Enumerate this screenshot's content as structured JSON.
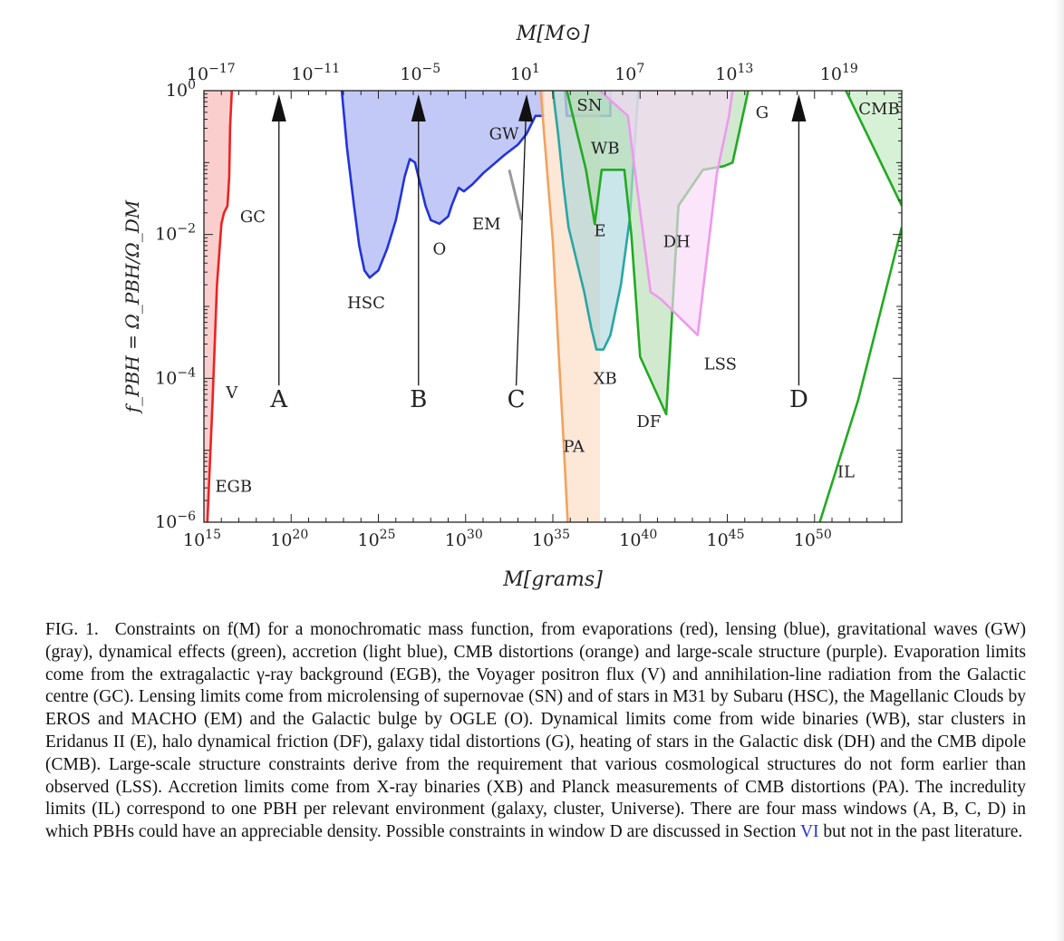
{
  "chart_data": {
    "type": "area",
    "title": "",
    "xlabel": "M[grams]",
    "x2label": "M[M⊙]",
    "ylabel": "f_PBH = Ω_PBH/Ω_DM",
    "xscale": "log",
    "yscale": "log",
    "xlim_log10": [
      15,
      55
    ],
    "ylim_log10": [
      -6,
      0
    ],
    "x_ticks": [
      {
        "log": 15,
        "base": "10",
        "exp": "15"
      },
      {
        "log": 20,
        "base": "10",
        "exp": "20"
      },
      {
        "log": 25,
        "base": "10",
        "exp": "25"
      },
      {
        "log": 30,
        "base": "10",
        "exp": "30"
      },
      {
        "log": 35,
        "base": "10",
        "exp": "35"
      },
      {
        "log": 40,
        "base": "10",
        "exp": "40"
      },
      {
        "log": 45,
        "base": "10",
        "exp": "45"
      },
      {
        "log": 50,
        "base": "10",
        "exp": "50"
      }
    ],
    "x2_ticks": [
      {
        "log": 15.3,
        "base": "10",
        "exp": "−17"
      },
      {
        "log": 21.3,
        "base": "10",
        "exp": "−11"
      },
      {
        "log": 27.3,
        "base": "10",
        "exp": "−5"
      },
      {
        "log": 33.3,
        "base": "10",
        "exp": "1"
      },
      {
        "log": 39.3,
        "base": "10",
        "exp": "7"
      },
      {
        "log": 45.3,
        "base": "10",
        "exp": "13"
      },
      {
        "log": 51.3,
        "base": "10",
        "exp": "19"
      }
    ],
    "y_ticks": [
      {
        "log": 0,
        "base": "10",
        "exp": "0"
      },
      {
        "log": -2,
        "base": "10",
        "exp": "−2"
      },
      {
        "log": -4,
        "base": "10",
        "exp": "−4"
      },
      {
        "log": -6,
        "base": "10",
        "exp": "−6"
      }
    ],
    "regions": [
      {
        "name": "Evaporation",
        "color": "#ee2222",
        "fill": "#fbc9c9",
        "fill_opacity": 0.9,
        "boundary": [
          [
            15.2,
            -6
          ],
          [
            15.5,
            -4.3
          ],
          [
            15.75,
            -2.7
          ],
          [
            16.0,
            -1.85
          ],
          [
            16.15,
            -1.7
          ],
          [
            16.35,
            -1.6
          ],
          [
            16.45,
            -1.2
          ],
          [
            16.5,
            -0.5
          ],
          [
            16.6,
            0
          ]
        ],
        "closure": [
          [
            15.0,
            0
          ],
          [
            15.0,
            -6
          ]
        ]
      },
      {
        "name": "Lensing",
        "color": "#2233dd",
        "fill": "#b8bff4",
        "fill_opacity": 0.85,
        "boundary": [
          [
            22.9,
            0
          ],
          [
            23.2,
            -0.8
          ],
          [
            23.6,
            -1.6
          ],
          [
            23.9,
            -2.15
          ],
          [
            24.2,
            -2.5
          ],
          [
            24.5,
            -2.6
          ],
          [
            25.0,
            -2.5
          ],
          [
            25.5,
            -2.2
          ],
          [
            26.0,
            -1.8
          ],
          [
            26.3,
            -1.45
          ],
          [
            26.5,
            -1.2
          ],
          [
            26.8,
            -0.95
          ],
          [
            27.1,
            -1.0
          ],
          [
            27.4,
            -1.3
          ],
          [
            27.7,
            -1.6
          ],
          [
            28.0,
            -1.8
          ],
          [
            28.5,
            -1.85
          ],
          [
            29.0,
            -1.75
          ],
          [
            29.2,
            -1.6
          ],
          [
            29.6,
            -1.35
          ],
          [
            29.9,
            -1.4
          ],
          [
            30.4,
            -1.3
          ],
          [
            31.0,
            -1.15
          ],
          [
            32.2,
            -0.9
          ],
          [
            33.0,
            -0.75
          ],
          [
            33.5,
            -0.6
          ],
          [
            34.0,
            -0.35
          ],
          [
            34.5,
            -0.35
          ]
        ],
        "closure": [
          [
            34.5,
            0
          ]
        ]
      },
      {
        "name": "SN",
        "color": "#2233dd",
        "fill": "#a6b8e6",
        "fill_opacity": 0.5,
        "boundary": [
          [
            35.7,
            0
          ],
          [
            35.8,
            -0.35
          ],
          [
            38.3,
            -0.35
          ],
          [
            38.3,
            0
          ]
        ],
        "closure": []
      },
      {
        "name": "PA",
        "color": "#f2a25e",
        "fill": "#fbd6b8",
        "fill_opacity": 0.55,
        "boundary": [
          [
            34.3,
            0
          ],
          [
            34.7,
            -1.2
          ],
          [
            35.0,
            -2.1
          ],
          [
            35.3,
            -3.5
          ],
          [
            35.6,
            -4.8
          ],
          [
            35.85,
            -6
          ]
        ],
        "closure": [
          [
            37.7,
            -6
          ],
          [
            37.7,
            0
          ]
        ]
      },
      {
        "name": "XB",
        "color": "#2aa5a5",
        "fill": "#9fd2d8",
        "fill_opacity": 0.55,
        "boundary": [
          [
            35.0,
            0
          ],
          [
            35.3,
            -0.6
          ],
          [
            35.6,
            -1.3
          ],
          [
            35.9,
            -1.9
          ],
          [
            36.3,
            -2.3
          ],
          [
            36.8,
            -2.8
          ],
          [
            37.2,
            -3.3
          ],
          [
            37.5,
            -3.6
          ],
          [
            37.9,
            -3.6
          ],
          [
            38.3,
            -3.4
          ],
          [
            38.9,
            -2.7
          ],
          [
            39.4,
            -1.8
          ],
          [
            39.9,
            0
          ]
        ],
        "closure": []
      },
      {
        "name": "Dynamical",
        "color": "#22aa22",
        "fill": "#b9dfb5",
        "fill_opacity": 0.65,
        "boundary": [
          [
            35.8,
            0
          ],
          [
            36.3,
            -0.5
          ],
          [
            36.9,
            -1.1
          ],
          [
            37.4,
            -1.85
          ],
          [
            37.8,
            -1.1
          ],
          [
            39.1,
            -1.1
          ],
          [
            39.5,
            -2.0
          ],
          [
            40.0,
            -3.7
          ],
          [
            41.5,
            -4.5
          ],
          [
            42.2,
            -1.6
          ],
          [
            43.6,
            -1.1
          ],
          [
            44.8,
            -1.05
          ],
          [
            45.3,
            -1.0
          ],
          [
            46.2,
            0
          ]
        ],
        "closure": []
      },
      {
        "name": "LSS",
        "color": "#ee99ee",
        "fill": "#f8d7f8",
        "fill_opacity": 0.65,
        "boundary": [
          [
            37.7,
            0
          ],
          [
            39.3,
            -0.35
          ],
          [
            40.6,
            -2.8
          ],
          [
            41.2,
            -2.9
          ],
          [
            43.3,
            -3.4
          ],
          [
            44.4,
            -1.15
          ],
          [
            45.1,
            -0.35
          ],
          [
            45.3,
            0
          ]
        ],
        "closure": []
      },
      {
        "name": "CMB",
        "color": "#22aa22",
        "fill": "#c6ebc4",
        "fill_opacity": 0.7,
        "boundary": [
          [
            51.8,
            0
          ],
          [
            52.5,
            -0.35
          ],
          [
            54.8,
            -1.5
          ],
          [
            55,
            -1.6
          ]
        ],
        "closure": [
          [
            55,
            0
          ]
        ]
      },
      {
        "name": "IL",
        "color": "#22aa22",
        "fill": "none",
        "fill_opacity": 0,
        "boundary": [
          [
            50.3,
            -6
          ],
          [
            52.5,
            -4.3
          ],
          [
            55,
            -1.9
          ]
        ],
        "closure": []
      },
      {
        "name": "GW",
        "color": "#999999",
        "fill": "none",
        "fill_opacity": 0,
        "boundary": [
          [
            32.5,
            -1.1
          ],
          [
            33.2,
            -1.8
          ]
        ],
        "closure": []
      }
    ],
    "annotations": [
      {
        "text": "GC",
        "x": 17.8,
        "y": -1.75
      },
      {
        "text": "V",
        "x": 16.6,
        "y": -4.2
      },
      {
        "text": "EGB",
        "x": 16.7,
        "y": -5.5
      },
      {
        "text": "HSC",
        "x": 24.3,
        "y": -2.95
      },
      {
        "text": "O",
        "x": 28.5,
        "y": -2.2
      },
      {
        "text": "EM",
        "x": 31.2,
        "y": -1.85
      },
      {
        "text": "GW",
        "x": 32.2,
        "y": -0.6
      },
      {
        "text": "SN",
        "x": 37.1,
        "y": -0.2
      },
      {
        "text": "WB",
        "x": 38.0,
        "y": -0.8
      },
      {
        "text": "E",
        "x": 37.7,
        "y": -1.95
      },
      {
        "text": "DH",
        "x": 42.1,
        "y": -2.1
      },
      {
        "text": "G",
        "x": 47.0,
        "y": -0.3
      },
      {
        "text": "CMB",
        "x": 53.7,
        "y": -0.25
      },
      {
        "text": "LSS",
        "x": 44.6,
        "y": -3.8
      },
      {
        "text": "XB",
        "x": 38.0,
        "y": -4.0
      },
      {
        "text": "DF",
        "x": 40.5,
        "y": -4.6
      },
      {
        "text": "PA",
        "x": 36.2,
        "y": -4.95
      },
      {
        "text": "IL",
        "x": 51.8,
        "y": -5.3
      }
    ],
    "windows": [
      {
        "label": "A",
        "x_head": 19.3,
        "x_tail": 19.3,
        "label_x": 19.3
      },
      {
        "label": "B",
        "x_head": 27.3,
        "x_tail": 27.3,
        "label_x": 27.3
      },
      {
        "label": "C",
        "x_head": 33.5,
        "x_tail": 32.9,
        "label_x": 32.9
      },
      {
        "label": "D",
        "x_head": 49.1,
        "x_tail": 49.1,
        "label_x": 49.1
      }
    ]
  },
  "caption": {
    "label": "FIG. 1.",
    "text_before_link": "Constraints on f(M) for a monochromatic mass function, from evaporations (red), lensing (blue), gravitational waves (GW) (gray), dynamical effects (green), accretion (light blue), CMB distortions (orange) and large-scale structure (purple). Evaporation limits come from the extragalactic γ-ray background (EGB), the Voyager positron flux (V) and annihilation-line radiation from the Galactic centre (GC). Lensing limits come from microlensing of supernovae (SN) and of stars in M31 by Subaru (HSC), the Magellanic Clouds by EROS and MACHO (EM) and the Galactic bulge by OGLE (O). Dynamical limits come from wide binaries (WB), star clusters in Eridanus II (E), halo dynamical friction (DF), galaxy tidal distortions (G), heating of stars in the Galactic disk (DH) and the CMB dipole (CMB). Large-scale structure constraints derive from the requirement that various cosmological structures do not form earlier than observed (LSS). Accretion limits come from X-ray binaries (XB) and Planck measurements of CMB distortions (PA). The incredulity limits (IL) correspond to one PBH per relevant environment (galaxy, cluster, Universe). There are four mass windows (A, B, C, D) in which PBHs could have an appreciable density. Possible constraints in window D are discussed in Section",
    "link_text": "VI",
    "text_after_link": "but not in the past literature."
  }
}
